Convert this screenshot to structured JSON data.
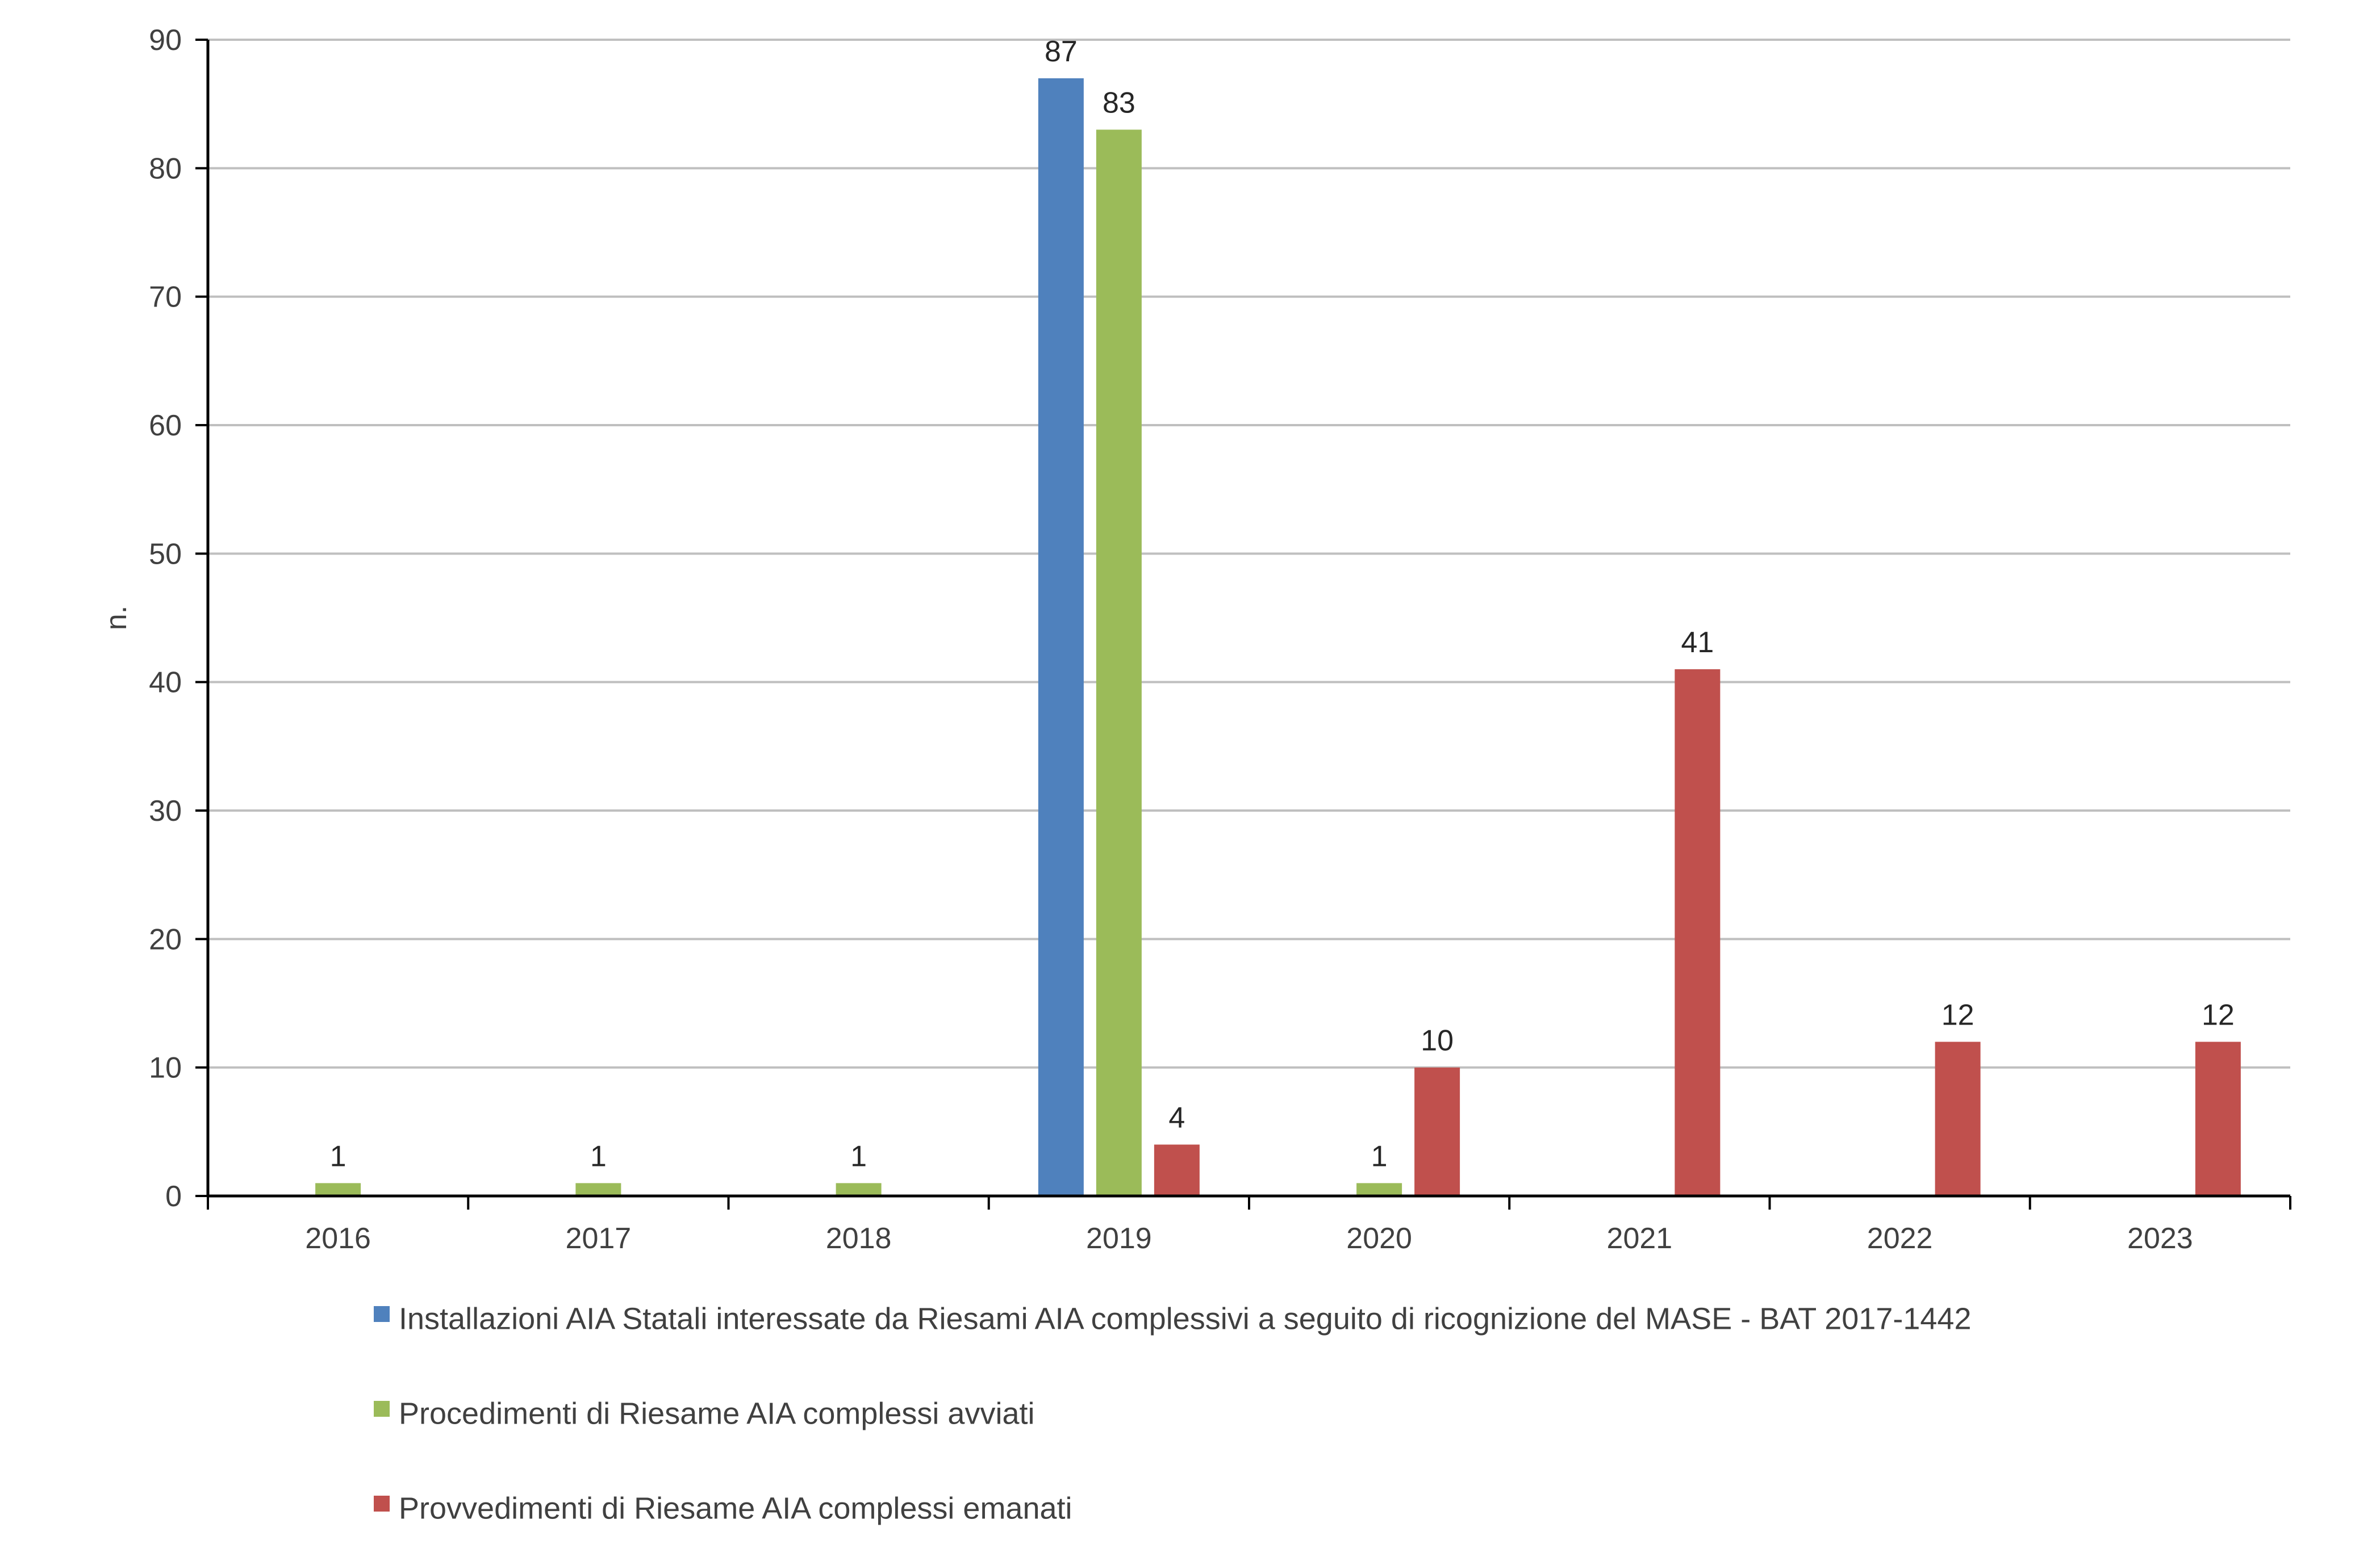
{
  "chart_data": {
    "type": "bar",
    "title": "",
    "xlabel": "",
    "ylabel": "n.",
    "ylim": [
      0,
      90
    ],
    "yticks": [
      0,
      10,
      20,
      30,
      40,
      50,
      60,
      70,
      80,
      90
    ],
    "grid": true,
    "legend_position": "bottom",
    "categories": [
      "2016",
      "2017",
      "2018",
      "2019",
      "2020",
      "2021",
      "2022",
      "2023"
    ],
    "series": [
      {
        "name": "Installazioni AIA Statali interessate da Riesami AIA complessivi a seguito di ricognizione del MASE - BAT 2017-1442",
        "color": "#4F81BD",
        "values": [
          null,
          null,
          null,
          87,
          null,
          null,
          null,
          null
        ]
      },
      {
        "name": "Procedimenti di Riesame AIA complessi avviati",
        "color": "#9BBB59",
        "values": [
          1,
          1,
          1,
          83,
          1,
          null,
          null,
          null
        ]
      },
      {
        "name": "Provvedimenti di Riesame AIA complessi emanati",
        "color": "#C0504D",
        "values": [
          null,
          null,
          null,
          4,
          10,
          41,
          12,
          12
        ]
      }
    ]
  }
}
